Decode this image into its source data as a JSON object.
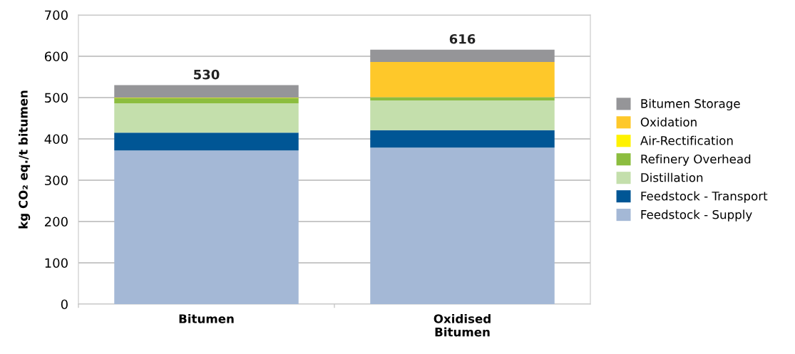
{
  "chart_data": {
    "type": "bar",
    "stacked": true,
    "categories": [
      "Bitumen",
      "Oxidised\nBitumen"
    ],
    "ylabel": "kg CO₂ eq./t bitumen",
    "ylim": [
      0,
      700
    ],
    "yticks": [
      0,
      100,
      200,
      300,
      400,
      500,
      600,
      700
    ],
    "grid": "y",
    "legend": "right",
    "totals": [
      "530",
      "616"
    ],
    "series": [
      {
        "name": "Feedstock - Supply",
        "color": "#a4b8d6",
        "values": [
          372,
          379
        ]
      },
      {
        "name": "Feedstock - Transport",
        "color": "#005695",
        "values": [
          43,
          42
        ]
      },
      {
        "name": "Distillation",
        "color": "#c4dfac",
        "values": [
          71,
          72
        ]
      },
      {
        "name": "Refinery Overhead",
        "color": "#8cbd3f",
        "values": [
          13,
          8
        ]
      },
      {
        "name": "Air-Rectification",
        "color": "#fff200",
        "values": [
          1,
          0
        ]
      },
      {
        "name": "Oxidation",
        "color": "#fec82a",
        "values": [
          0,
          85
        ]
      },
      {
        "name": "Bitumen Storage",
        "color": "#959598",
        "values": [
          30,
          30
        ]
      }
    ]
  }
}
